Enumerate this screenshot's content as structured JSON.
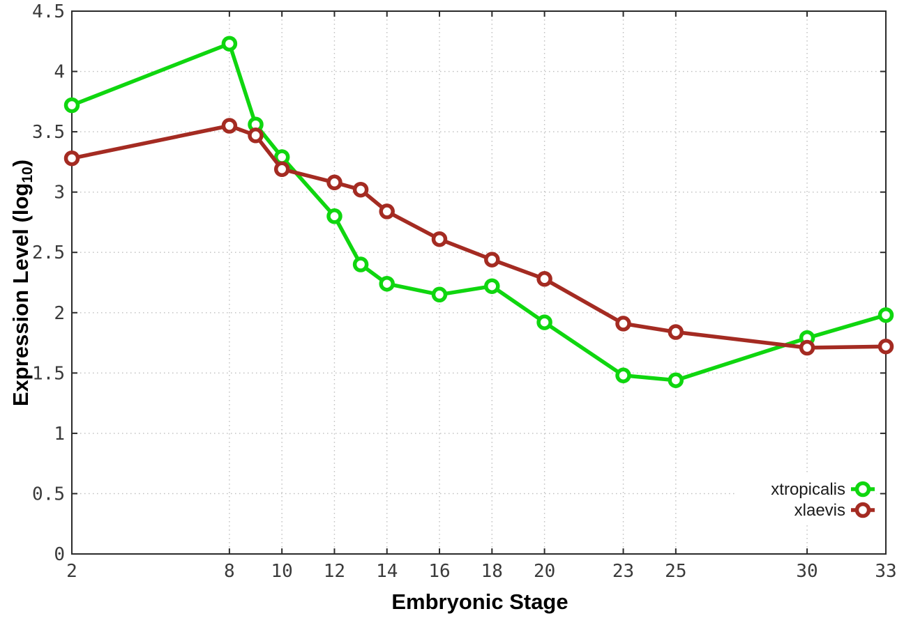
{
  "chart_data": {
    "type": "line",
    "title": "",
    "xlabel": "Embryonic Stage",
    "ylabel": {
      "main": "Expression Level (log",
      "sub": "10",
      "close": ")"
    },
    "xlim": [
      2,
      33
    ],
    "ylim": [
      0,
      4.5
    ],
    "xticks": [
      2,
      8,
      10,
      12,
      14,
      16,
      18,
      20,
      23,
      25,
      30,
      33
    ],
    "xtick_labels": [
      "2",
      "8",
      "10",
      "12",
      "14",
      "16",
      "18",
      "20",
      "23",
      "25",
      "30",
      "33"
    ],
    "yticks": [
      0,
      0.5,
      1,
      1.5,
      2,
      2.5,
      3,
      3.5,
      4,
      4.5
    ],
    "ytick_labels": [
      "0",
      "0.5",
      "1",
      "1.5",
      "2",
      "2.5",
      "3",
      "3.5",
      "4",
      "4.5"
    ],
    "grid": "dotted",
    "legend_position": "bottom-right",
    "x": [
      2,
      8,
      9,
      10,
      12,
      13,
      14,
      16,
      18,
      20,
      23,
      25,
      30,
      33
    ],
    "series": [
      {
        "name": "xtropicalis",
        "color": "#0fd60f",
        "marker": "open-circle",
        "values": [
          3.72,
          4.23,
          3.56,
          3.29,
          2.8,
          2.4,
          2.24,
          2.15,
          2.22,
          1.92,
          1.48,
          1.44,
          1.79,
          1.98
        ]
      },
      {
        "name": "xlaevis",
        "color": "#a42b22",
        "marker": "open-circle",
        "values": [
          3.28,
          3.55,
          3.47,
          3.19,
          3.08,
          3.02,
          2.84,
          2.61,
          2.44,
          2.28,
          1.91,
          1.84,
          1.71,
          1.72
        ]
      }
    ],
    "colors": {
      "background": "#ffffff",
      "border": "#2b2b2b",
      "grid": "#bdbdbd",
      "tick_text": "#3a3a3a",
      "legend_text": "#1c1c1c"
    }
  }
}
